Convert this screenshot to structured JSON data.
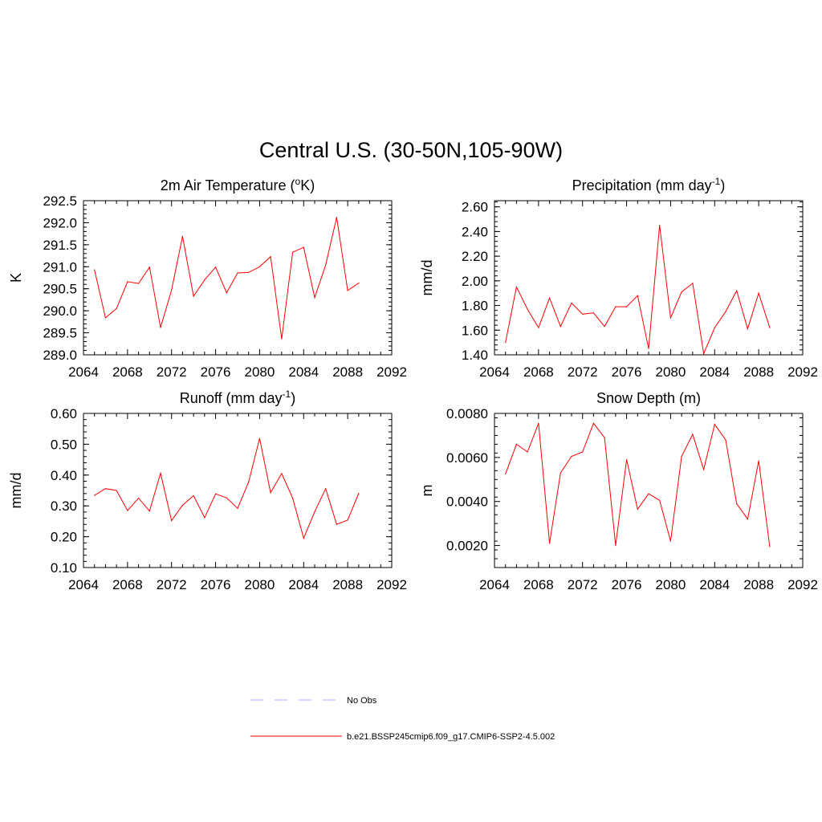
{
  "figure": {
    "title": "Central U.S. (30-50N,105-90W)"
  },
  "legend": {
    "placement": "bottom-center",
    "entries": [
      {
        "label": "No Obs",
        "color": "#aab0ff",
        "style": "dashed"
      },
      {
        "label": "b.e21.BSSP245cmip6.f09_g17.CMIP6-SSP2-4.5.002",
        "color": "#ff0000",
        "style": "solid"
      }
    ]
  },
  "chart_data": [
    {
      "type": "line",
      "title": "2m Air Temperature (°K)",
      "title_main": "2m Air Temperature (",
      "title_sup": "o",
      "title_tail": "K)",
      "xlabel": "",
      "ylabel": "K",
      "xlim": [
        2064,
        2092
      ],
      "ylim": [
        289.0,
        292.5
      ],
      "xticks": [
        2064,
        2068,
        2072,
        2076,
        2080,
        2084,
        2088,
        2092
      ],
      "yticks": [
        "289.0",
        "289.5",
        "290.0",
        "290.5",
        "291.0",
        "291.5",
        "292.0",
        "292.5"
      ],
      "grid": false,
      "series": [
        {
          "color": "#ff0000",
          "x": [
            2065,
            2066,
            2067,
            2068,
            2069,
            2070,
            2071,
            2072,
            2073,
            2074,
            2075,
            2076,
            2077,
            2078,
            2079,
            2080,
            2081,
            2082,
            2083,
            2084,
            2085,
            2086,
            2087,
            2088,
            2089
          ],
          "values": [
            290.93,
            289.84,
            290.05,
            290.66,
            290.62,
            290.99,
            289.62,
            290.47,
            291.69,
            290.33,
            290.7,
            290.99,
            290.41,
            290.86,
            290.87,
            291.0,
            291.23,
            289.36,
            291.33,
            291.44,
            290.3,
            291.04,
            292.12,
            290.46,
            290.63
          ]
        }
      ]
    },
    {
      "type": "line",
      "title": "Precipitation (mm day-1)",
      "title_main": "Precipitation (mm day",
      "title_sup": "-1",
      "title_tail": ")",
      "xlabel": "",
      "ylabel": "mm/d",
      "xlim": [
        2064,
        2092
      ],
      "ylim": [
        1.4,
        2.65
      ],
      "xticks": [
        2064,
        2068,
        2072,
        2076,
        2080,
        2084,
        2088,
        2092
      ],
      "yticks": [
        "1.40",
        "1.60",
        "1.80",
        "2.00",
        "2.20",
        "2.40",
        "2.60"
      ],
      "grid": false,
      "series": [
        {
          "color": "#ff0000",
          "x": [
            2065,
            2066,
            2067,
            2068,
            2069,
            2070,
            2071,
            2072,
            2073,
            2074,
            2075,
            2076,
            2077,
            2078,
            2079,
            2080,
            2081,
            2082,
            2083,
            2084,
            2085,
            2086,
            2087,
            2088,
            2089
          ],
          "values": [
            1.5,
            1.95,
            1.77,
            1.62,
            1.86,
            1.63,
            1.82,
            1.73,
            1.74,
            1.63,
            1.79,
            1.79,
            1.88,
            1.45,
            2.45,
            1.7,
            1.91,
            1.98,
            1.41,
            1.62,
            1.75,
            1.92,
            1.61,
            1.9,
            1.62
          ]
        }
      ]
    },
    {
      "type": "line",
      "title": "Runoff (mm day-1)",
      "title_main": "Runoff (mm day",
      "title_sup": "-1",
      "title_tail": ")",
      "xlabel": "",
      "ylabel": "mm/d",
      "xlim": [
        2064,
        2092
      ],
      "ylim": [
        0.1,
        0.6
      ],
      "xticks": [
        2064,
        2068,
        2072,
        2076,
        2080,
        2084,
        2088,
        2092
      ],
      "yticks": [
        "0.10",
        "0.20",
        "0.30",
        "0.40",
        "0.50",
        "0.60"
      ],
      "grid": false,
      "series": [
        {
          "color": "#ff0000",
          "x": [
            2065,
            2066,
            2067,
            2068,
            2069,
            2070,
            2071,
            2072,
            2073,
            2074,
            2075,
            2076,
            2077,
            2078,
            2079,
            2080,
            2081,
            2082,
            2083,
            2084,
            2085,
            2086,
            2087,
            2088,
            2089
          ],
          "values": [
            0.334,
            0.356,
            0.35,
            0.285,
            0.325,
            0.283,
            0.406,
            0.252,
            0.302,
            0.333,
            0.262,
            0.339,
            0.326,
            0.292,
            0.377,
            0.519,
            0.343,
            0.405,
            0.325,
            0.195,
            0.281,
            0.356,
            0.24,
            0.254,
            0.341
          ]
        }
      ]
    },
    {
      "type": "line",
      "title": "Snow Depth (m)",
      "title_main": "Snow Depth (m)",
      "title_sup": "",
      "title_tail": "",
      "xlabel": "",
      "ylabel": "m",
      "xlim": [
        2064,
        2092
      ],
      "ylim": [
        0.001,
        0.008
      ],
      "xticks": [
        2064,
        2068,
        2072,
        2076,
        2080,
        2084,
        2088,
        2092
      ],
      "yticks": [
        "0.0020",
        "0.0040",
        "0.0060",
        "0.0080"
      ],
      "grid": false,
      "series": [
        {
          "color": "#ff0000",
          "x": [
            2065,
            2066,
            2067,
            2068,
            2069,
            2070,
            2071,
            2072,
            2073,
            2074,
            2075,
            2076,
            2077,
            2078,
            2079,
            2080,
            2081,
            2082,
            2083,
            2084,
            2085,
            2086,
            2087,
            2088,
            2089
          ],
          "values": [
            0.00525,
            0.0066,
            0.00625,
            0.00755,
            0.0021,
            0.0053,
            0.00605,
            0.00625,
            0.00755,
            0.0069,
            0.002,
            0.0059,
            0.00365,
            0.00435,
            0.00405,
            0.0022,
            0.00605,
            0.00705,
            0.00545,
            0.0075,
            0.0068,
            0.0039,
            0.0032,
            0.00585,
            0.00195
          ]
        }
      ]
    }
  ]
}
